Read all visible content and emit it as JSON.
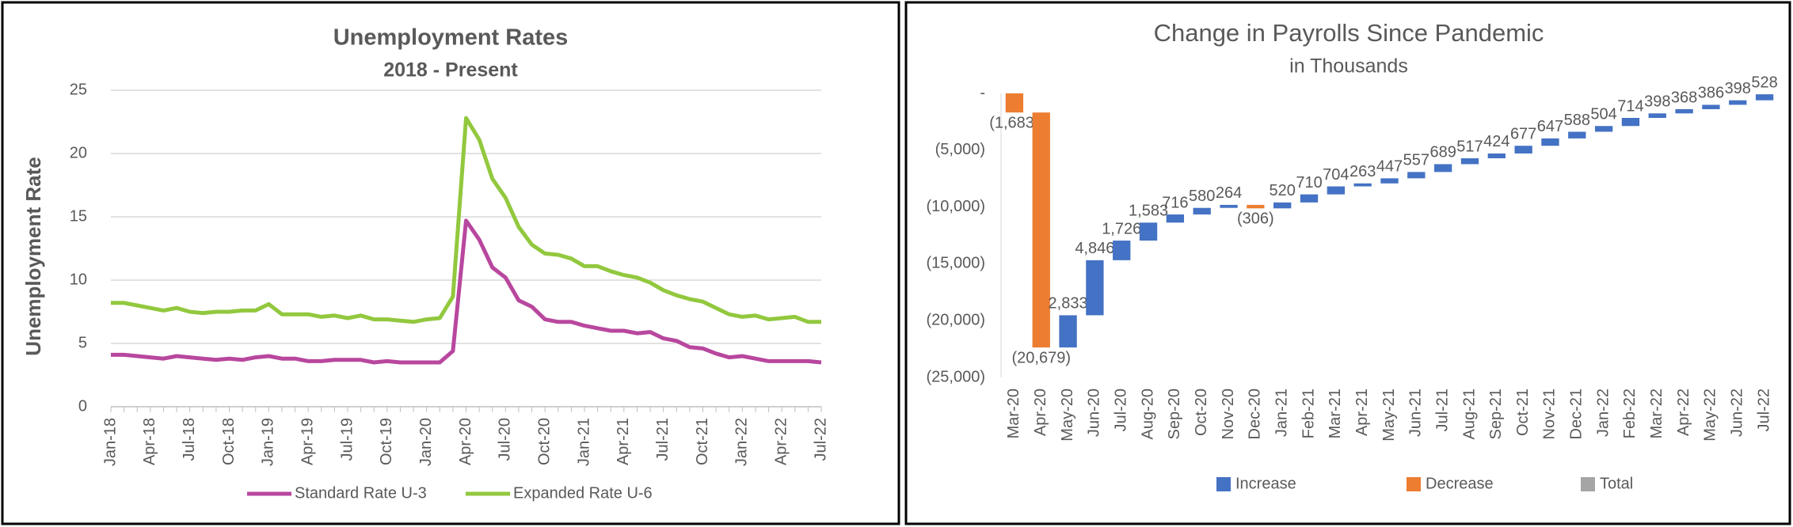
{
  "chart_data": [
    {
      "type": "line",
      "title": "Unemployment Rates",
      "subtitle": "2018 - Present",
      "y_label": "Unemployment Rate",
      "categories": [
        "Jan-18",
        null,
        null,
        "Apr-18",
        null,
        null,
        "Jul-18",
        null,
        null,
        "Oct-18",
        null,
        null,
        "Jan-19",
        null,
        null,
        "Apr-19",
        null,
        null,
        "Jul-19",
        null,
        null,
        "Oct-19",
        null,
        null,
        "Jan-20",
        null,
        null,
        "Apr-20",
        null,
        null,
        "Jul-20",
        null,
        null,
        "Oct-20",
        null,
        null,
        "Jan-21",
        null,
        null,
        "Apr-21",
        null,
        null,
        "Jul-21",
        null,
        null,
        "Oct-21",
        null,
        null,
        "Jan-22",
        null,
        null,
        "Apr-22",
        null,
        null,
        "Jul-22"
      ],
      "series": [
        {
          "name": "Standard Rate U-3",
          "color": "#b8479e",
          "values": [
            4.1,
            4.1,
            4.0,
            3.9,
            3.8,
            4.0,
            3.9,
            3.8,
            3.7,
            3.8,
            3.7,
            3.9,
            4.0,
            3.8,
            3.8,
            3.6,
            3.6,
            3.7,
            3.7,
            3.7,
            3.5,
            3.6,
            3.5,
            3.5,
            3.5,
            3.5,
            4.4,
            14.7,
            13.2,
            11.0,
            10.2,
            8.4,
            7.9,
            6.9,
            6.7,
            6.7,
            6.4,
            6.2,
            6.0,
            6.0,
            5.8,
            5.9,
            5.4,
            5.2,
            4.7,
            4.6,
            4.2,
            3.9,
            4.0,
            3.8,
            3.6,
            3.6,
            3.6,
            3.6,
            3.5
          ]
        },
        {
          "name": "Expanded Rate U-6",
          "color": "#92c83e",
          "values": [
            8.2,
            8.2,
            8.0,
            7.8,
            7.6,
            7.8,
            7.5,
            7.4,
            7.5,
            7.5,
            7.6,
            7.6,
            8.1,
            7.3,
            7.3,
            7.3,
            7.1,
            7.2,
            7.0,
            7.2,
            6.9,
            6.9,
            6.8,
            6.7,
            6.9,
            7.0,
            8.7,
            22.8,
            21.1,
            18.0,
            16.5,
            14.2,
            12.8,
            12.1,
            12.0,
            11.7,
            11.1,
            11.1,
            10.7,
            10.4,
            10.2,
            9.8,
            9.2,
            8.8,
            8.5,
            8.3,
            7.8,
            7.3,
            7.1,
            7.2,
            6.9,
            7.0,
            7.1,
            6.7,
            6.7
          ]
        }
      ],
      "ylim": [
        0,
        25
      ],
      "yticks": [
        0,
        5,
        10,
        15,
        20,
        25
      ],
      "grid": true,
      "legend": "bottom"
    },
    {
      "type": "waterfall",
      "title": "Change in Payrolls Since Pandemic",
      "subtitle": "in Thousands",
      "categories": [
        "Mar-20",
        "Apr-20",
        "May-20",
        "Jun-20",
        "Jul-20",
        "Aug-20",
        "Sep-20",
        "Oct-20",
        "Nov-20",
        "Dec-20",
        "Jan-21",
        "Feb-21",
        "Mar-21",
        "Apr-21",
        "May-21",
        "Jun-21",
        "Jul-21",
        "Aug-21",
        "Sep-21",
        "Oct-21",
        "Nov-21",
        "Dec-21",
        "Jan-22",
        "Feb-22",
        "Mar-22",
        "Apr-22",
        "May-22",
        "Jun-22",
        "Jul-22"
      ],
      "values": [
        -1683,
        -20679,
        2833,
        4846,
        1726,
        1583,
        716,
        580,
        264,
        -306,
        520,
        710,
        704,
        263,
        447,
        557,
        689,
        517,
        424,
        677,
        647,
        588,
        504,
        714,
        398,
        368,
        386,
        398,
        528
      ],
      "value_labels": [
        "(1,683)",
        "(20,679)",
        "2,833",
        "4,846",
        "1,726",
        "1,583",
        "716",
        "580",
        "264",
        "(306)",
        "520",
        "710",
        "704",
        "263",
        "447",
        "557",
        "689",
        "517",
        "424",
        "677",
        "647",
        "588",
        "504",
        "714",
        "398",
        "368",
        "386",
        "398",
        "528"
      ],
      "ylim": [
        -25000,
        0
      ],
      "yticks": [
        {
          "value": 0,
          "label": "-"
        },
        {
          "value": -5000,
          "label": "(5,000)"
        },
        {
          "value": -10000,
          "label": "(10,000)"
        },
        {
          "value": -15000,
          "label": "(15,000)"
        },
        {
          "value": -20000,
          "label": "(20,000)"
        },
        {
          "value": -25000,
          "label": "(25,000)"
        }
      ],
      "legend_entries": [
        {
          "name": "Increase",
          "color": "#4472c4"
        },
        {
          "name": "Decrease",
          "color": "#ed7d31"
        },
        {
          "name": "Total",
          "color": "#a5a5a5"
        }
      ],
      "legend": "bottom"
    }
  ]
}
